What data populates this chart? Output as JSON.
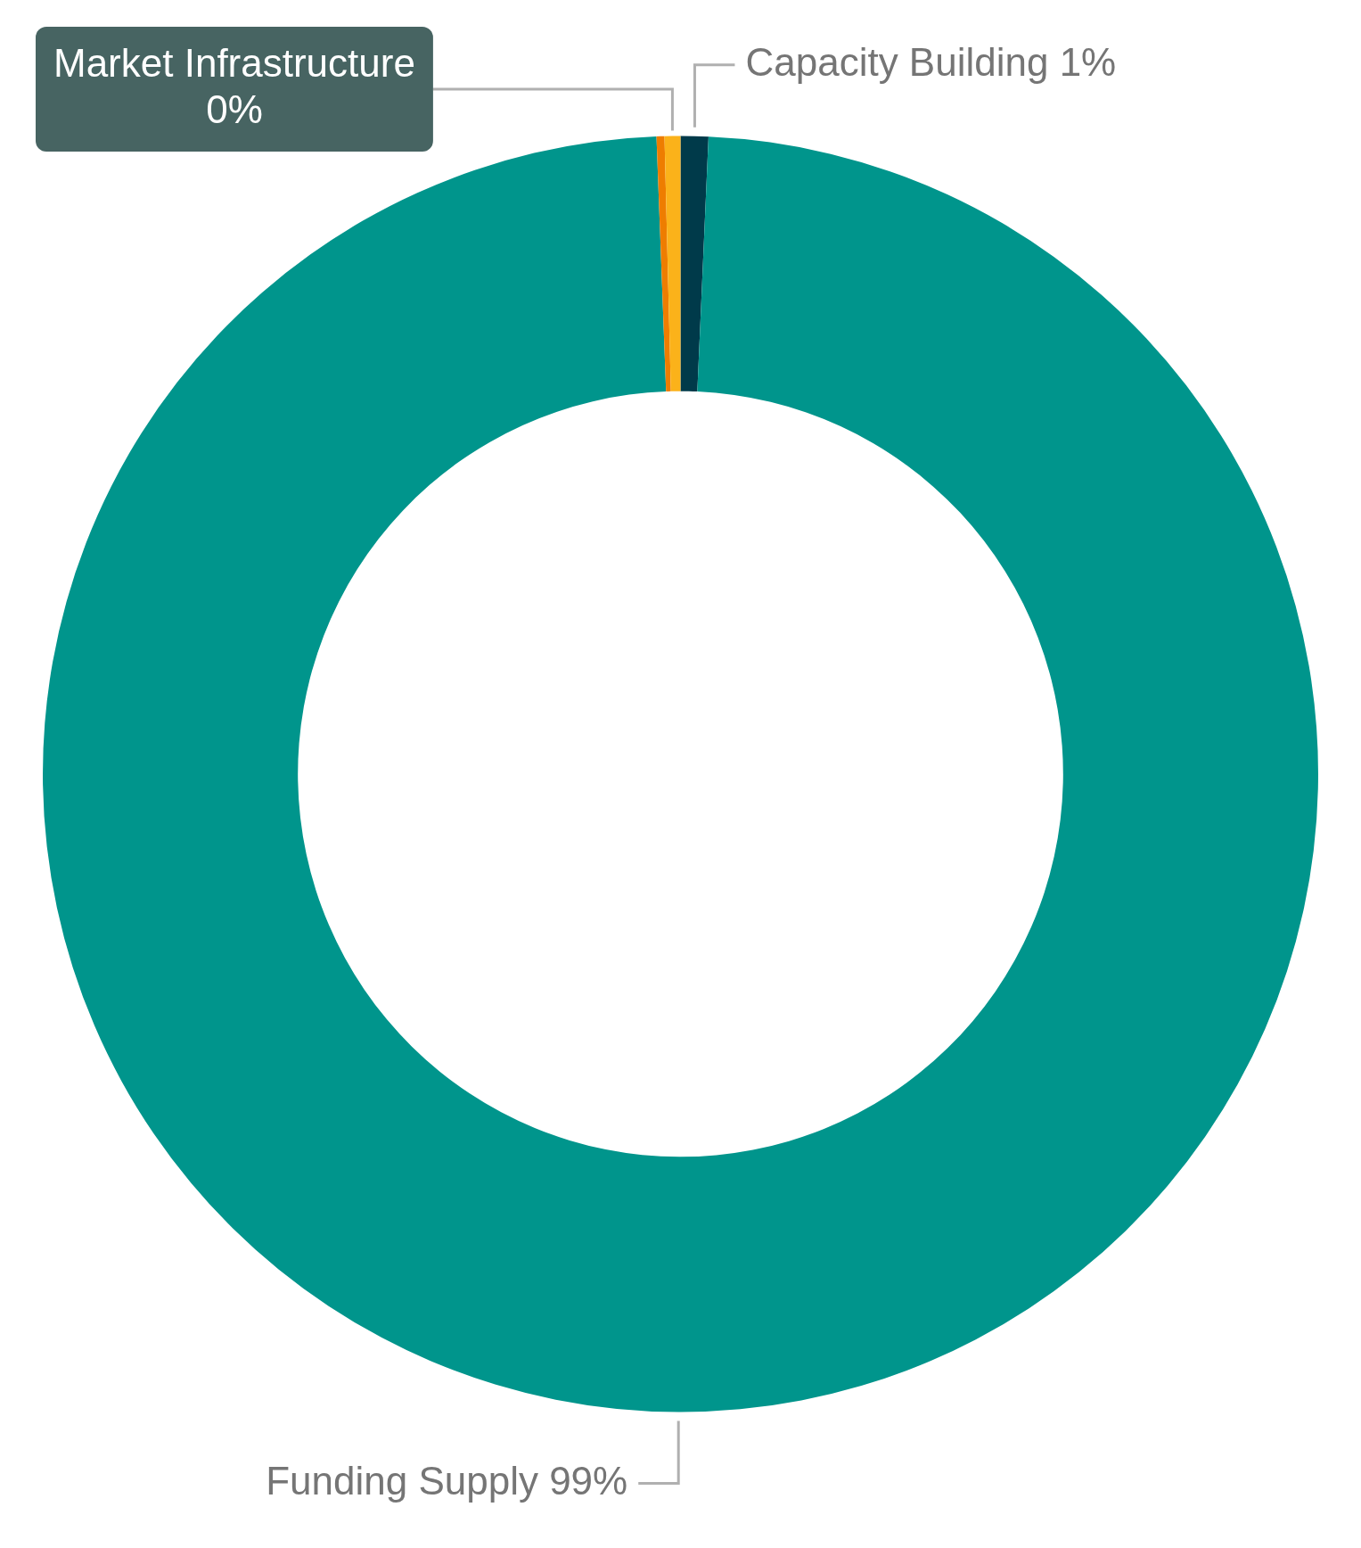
{
  "chart_data": {
    "type": "donut",
    "categories": [
      "Capacity Building",
      "Funding Supply",
      null,
      "Market Infrastructure"
    ],
    "values": [
      0.7,
      98.7,
      0.2,
      0.4
    ],
    "colors": [
      "#003a4a",
      "#00958c",
      "#ee7d00",
      "#fbb21a"
    ],
    "value_labels": [
      "1%",
      "99%",
      null,
      "0%"
    ],
    "legend": false
  }
}
